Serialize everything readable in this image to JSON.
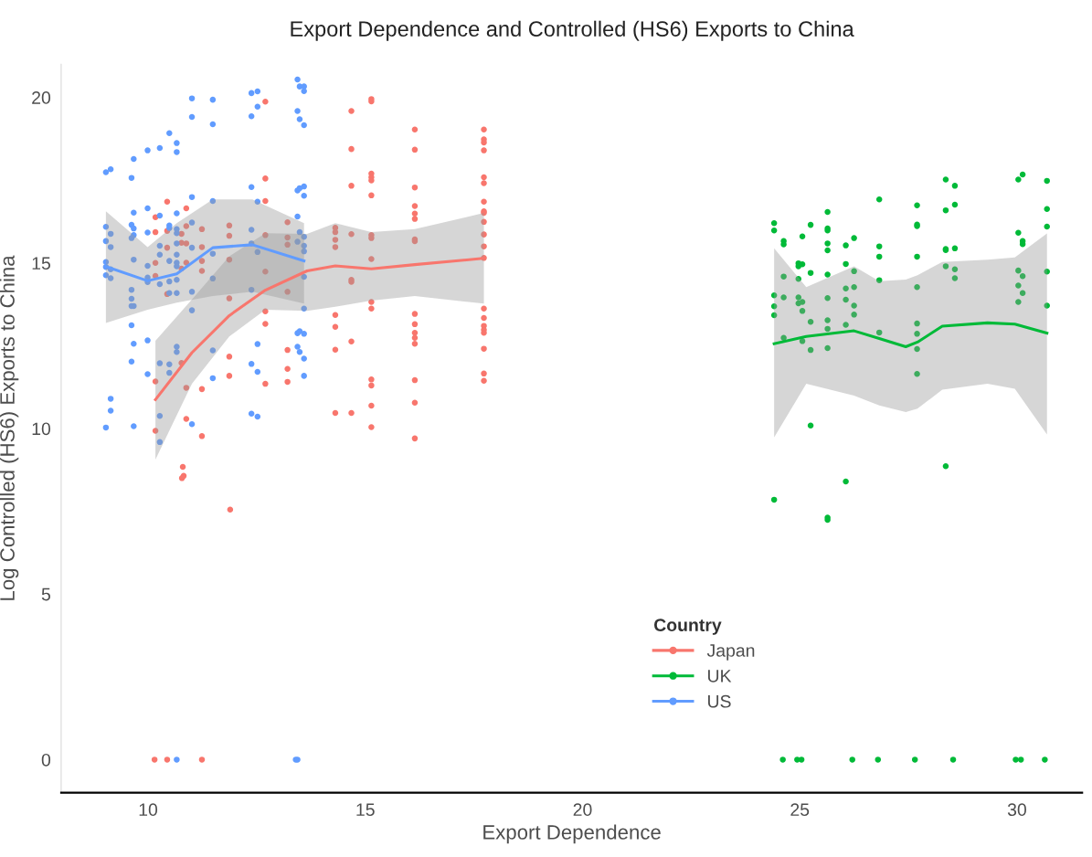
{
  "chart_data": {
    "type": "scatter",
    "title": "Export Dependence and Controlled (HS6) Exports to China",
    "xlabel": "Export Dependence",
    "ylabel": "Log Controlled (HS6) Exports to China",
    "legend_title": "Country",
    "legend": "bottom",
    "grid": false,
    "xlim": [
      8,
      31.5
    ],
    "xticks": [
      10,
      15,
      20,
      25,
      30
    ],
    "ylim": [
      -1,
      21
    ],
    "yticks": [
      0,
      5,
      10,
      15,
      20
    ],
    "series": [
      {
        "name": "Japan",
        "marker": "circle",
        "color": "#f8766d",
        "x": [
          12.7,
          12.7,
          12.7,
          10.44,
          10.88,
          10.17,
          10.88,
          10.17,
          10.44,
          11.24,
          11.87,
          11.87,
          12.7,
          13.21,
          13.21,
          13.21,
          10.77,
          10.77,
          10.88,
          10.44,
          11.24,
          11.24,
          11.87,
          10.17,
          10.88,
          10.77,
          11.24,
          12.7,
          10.17,
          10.44,
          13.21,
          11.87,
          12.7,
          12.7,
          13.21,
          11.87,
          13.21,
          11.87,
          12.7,
          13.21,
          10.17,
          10.77,
          10.88,
          11.24,
          10.88,
          10.17,
          11.24,
          10.8,
          10.82,
          10.78,
          11.89,
          10.15,
          10.44,
          11.24,
          14.31,
          14.31,
          14.31,
          14.31,
          14.31,
          14.31,
          14.31,
          14.31,
          14.68,
          14.68,
          14.68,
          14.68,
          14.68,
          14.68,
          14.68,
          14.68,
          15.14,
          15.14,
          15.14,
          15.14,
          15.14,
          15.14,
          15.14,
          15.14,
          15.14,
          15.14,
          15.14,
          15.14,
          15.14,
          15.14,
          15.14,
          16.14,
          16.14,
          16.14,
          16.14,
          16.14,
          16.14,
          16.14,
          16.14,
          16.14,
          16.14,
          16.14,
          16.14,
          16.14,
          16.14,
          16.14,
          16.14,
          17.73,
          17.73,
          17.73,
          17.73,
          17.73,
          17.73,
          17.73,
          17.73,
          17.73,
          17.73,
          17.73,
          17.73,
          17.73,
          17.73,
          17.73,
          17.73,
          17.73,
          17.73,
          17.73,
          17.73,
          17.73
        ],
        "values": [
          19.87,
          17.55,
          16.87,
          16.85,
          16.65,
          16.38,
          16.11,
          15.93,
          15.97,
          16.02,
          16.13,
          15.82,
          15.84,
          16.23,
          15.77,
          15.55,
          15.88,
          15.61,
          15.59,
          15.46,
          15.48,
          15.06,
          15.1,
          15.0,
          15.01,
          14.83,
          14.76,
          14.74,
          14.61,
          14.06,
          14.13,
          13.93,
          13.54,
          13.16,
          12.37,
          12.17,
          11.8,
          11.59,
          11.35,
          11.41,
          11.42,
          11.98,
          11.23,
          11.19,
          10.29,
          9.93,
          9.77,
          8.84,
          8.57,
          8.5,
          7.55,
          0,
          0,
          0,
          16.06,
          15.93,
          15.7,
          15.48,
          13.43,
          13.07,
          12.38,
          10.47,
          19.59,
          18.44,
          17.33,
          15.87,
          14.49,
          14.43,
          12.63,
          10.47,
          19.95,
          19.88,
          17.7,
          17.59,
          17.49,
          17.04,
          15.84,
          15.75,
          15.12,
          13.82,
          13.62,
          11.48,
          11.3,
          10.69,
          10.04,
          19.03,
          18.42,
          17.28,
          16.72,
          16.49,
          16.33,
          15.71,
          15.66,
          13.46,
          13.15,
          12.89,
          12.74,
          12.56,
          11.46,
          10.78,
          9.7,
          19.03,
          18.73,
          18.64,
          18.4,
          17.59,
          17.41,
          16.85,
          16.56,
          16.51,
          16.24,
          15.86,
          15.5,
          15.15,
          13.62,
          13.34,
          13.1,
          12.98,
          12.89,
          12.41,
          11.66,
          11.44
        ]
      },
      {
        "name": "UK",
        "marker": "circle",
        "color": "#00ba38",
        "x": [
          24.41,
          24.41,
          24.41,
          24.41,
          24.41,
          24.41,
          24.63,
          24.63,
          24.63,
          24.63,
          24.63,
          24.97,
          24.97,
          24.97,
          24.97,
          24.97,
          25.06,
          25.06,
          25.06,
          25.06,
          25.06,
          25.25,
          25.25,
          25.25,
          25.25,
          25.25,
          25.64,
          25.64,
          25.64,
          25.64,
          25.64,
          25.64,
          25.64,
          25.64,
          25.64,
          25.64,
          25.64,
          25.64,
          26.06,
          26.06,
          26.06,
          26.06,
          26.06,
          26.06,
          26.25,
          26.25,
          26.25,
          26.25,
          26.25,
          26.83,
          26.83,
          26.83,
          26.83,
          26.83,
          27.7,
          27.7,
          27.7,
          27.7,
          27.7,
          27.7,
          27.7,
          27.7,
          27.7,
          28.36,
          28.36,
          28.36,
          28.36,
          28.36,
          28.36,
          28.57,
          28.57,
          28.57,
          28.57,
          28.57,
          30.03,
          30.03,
          30.03,
          30.03,
          30.03,
          30.13,
          30.13,
          30.13,
          30.13,
          30.13,
          30.69,
          30.69,
          30.69,
          30.69,
          30.69,
          24.61,
          24.94,
          25.04,
          26.21,
          26.8,
          27.65,
          28.53,
          29.97,
          30.09,
          30.64
        ],
        "values": [
          16.2,
          15.98,
          14.02,
          13.69,
          13.42,
          7.85,
          15.66,
          15.56,
          14.59,
          13.96,
          12.74,
          14.99,
          14.9,
          14.52,
          13.96,
          13.78,
          14.96,
          15.8,
          13.82,
          13.55,
          12.64,
          16.15,
          14.7,
          13.22,
          12.37,
          10.09,
          16.54,
          16.04,
          15.98,
          15.59,
          15.38,
          14.65,
          13.94,
          13.27,
          13.01,
          12.43,
          7.31,
          7.24,
          15.53,
          14.97,
          14.23,
          13.89,
          13.13,
          8.4,
          15.75,
          14.75,
          14.27,
          13.71,
          13.44,
          16.92,
          15.5,
          15.19,
          14.48,
          12.9,
          16.74,
          16.16,
          16.11,
          15.19,
          14.27,
          13.17,
          12.86,
          12.4,
          11.65,
          17.52,
          16.59,
          15.42,
          15.39,
          14.9,
          8.86,
          17.33,
          16.76,
          15.44,
          14.81,
          14.54,
          17.52,
          15.91,
          14.77,
          14.32,
          13.82,
          17.67,
          15.66,
          15.57,
          14.6,
          14.09,
          17.48,
          16.63,
          16.1,
          14.74,
          13.71,
          0,
          0,
          0,
          0,
          0,
          0,
          0,
          0,
          0,
          0
        ]
      },
      {
        "name": "US",
        "marker": "circle",
        "color": "#619cff",
        "x": [
          9.03,
          9.14,
          11.01,
          11.49,
          11.01,
          11.49,
          12.38,
          12.52,
          12.52,
          12.38,
          13.44,
          13.49,
          13.59,
          13.59,
          13.44,
          13.49,
          13.59,
          10.49,
          10.66,
          10.66,
          10.27,
          9.99,
          9.67,
          9.62,
          12.38,
          12.52,
          13.44,
          13.49,
          13.59,
          13.59,
          11.01,
          11.49,
          10.27,
          9.67,
          9.99,
          9.03,
          9.14,
          9.03,
          9.14,
          9.62,
          9.67,
          9.67,
          9.62,
          9.99,
          10.49,
          10.49,
          10.66,
          10.66,
          10.66,
          11.01,
          13.44,
          13.49,
          13.44,
          13.59,
          13.59,
          13.59,
          12.38,
          12.38,
          12.52,
          10.27,
          10.27,
          10.66,
          10.66,
          10.49,
          10.66,
          10.66,
          11.01,
          11.49,
          9.03,
          9.03,
          9.14,
          9.03,
          9.14,
          9.67,
          9.99,
          9.99,
          9.99,
          10.27,
          10.49,
          10.66,
          10.49,
          10.66,
          11.49,
          11.01,
          12.38,
          13.59,
          9.62,
          9.62,
          9.67,
          9.62,
          11.01,
          13.59,
          9.62,
          9.67,
          9.99,
          9.62,
          9.99,
          10.66,
          10.66,
          10.49,
          10.27,
          10.49,
          11.49,
          12.52,
          13.44,
          13.49,
          13.59,
          13.44,
          13.49,
          13.59,
          13.59,
          11.49,
          12.38,
          12.52,
          9.14,
          9.14,
          9.03,
          9.67,
          10.27,
          11.01,
          12.38,
          12.52,
          10.27,
          10.66,
          13.4,
          13.44
        ],
        "values": [
          17.74,
          17.83,
          19.97,
          19.93,
          19.41,
          19.19,
          20.13,
          20.18,
          19.72,
          19.43,
          20.54,
          20.33,
          20.33,
          20.19,
          19.59,
          19.34,
          19.16,
          18.92,
          18.62,
          18.35,
          18.47,
          18.4,
          18.14,
          17.57,
          17.29,
          16.85,
          17.19,
          17.26,
          17.31,
          17.03,
          16.99,
          16.87,
          16.43,
          16.52,
          16.65,
          16.09,
          15.88,
          15.66,
          15.48,
          16.15,
          16.04,
          15.84,
          15.75,
          15.92,
          16.13,
          16.05,
          16.5,
          16.02,
          15.9,
          16.22,
          16.4,
          15.93,
          15.64,
          15.79,
          15.52,
          15.35,
          16.0,
          15.59,
          15.33,
          15.52,
          15.25,
          15.59,
          15.25,
          15.06,
          15.01,
          14.9,
          15.46,
          15.28,
          15.03,
          14.88,
          14.81,
          14.63,
          14.54,
          15.1,
          14.91,
          14.56,
          14.42,
          14.36,
          14.44,
          14.49,
          14.09,
          14.09,
          14.53,
          14.13,
          14.19,
          14.58,
          14.19,
          13.92,
          13.7,
          13.7,
          13.57,
          13.62,
          13.12,
          12.56,
          12.66,
          12.02,
          11.64,
          12.47,
          12.31,
          11.94,
          11.97,
          11.68,
          12.36,
          12.55,
          12.88,
          12.94,
          12.86,
          12.47,
          12.31,
          12.11,
          11.59,
          11.52,
          11.95,
          11.71,
          10.9,
          10.54,
          10.03,
          10.07,
          10.38,
          10.13,
          10.45,
          10.36,
          9.59,
          0,
          0,
          0
        ]
      },
      {
        "type": "line",
        "color": "#f8766d",
        "x": [
          10.17,
          11.01,
          11.87,
          12.7,
          13.66,
          14.31,
          15.14,
          16.14,
          17.73
        ],
        "values": [
          10.87,
          12.29,
          13.41,
          14.18,
          14.76,
          14.91,
          14.82,
          14.95,
          15.14
        ],
        "lower": [
          9.06,
          11.35,
          12.78,
          13.59,
          13.55,
          13.68,
          13.86,
          14.0,
          13.77
        ],
        "upper": [
          12.65,
          13.9,
          15.2,
          15.9,
          15.88,
          16.2,
          15.93,
          16.02,
          16.51
        ]
      },
      {
        "type": "line",
        "color": "#00ba38",
        "x": [
          24.41,
          25.15,
          26.25,
          26.83,
          27.44,
          27.71,
          28.28,
          29.32,
          29.95,
          30.69
        ],
        "values": [
          12.56,
          12.78,
          12.95,
          12.72,
          12.47,
          12.61,
          13.09,
          13.19,
          13.15,
          12.88
        ],
        "lower": [
          9.73,
          11.35,
          10.99,
          10.7,
          10.5,
          10.6,
          11.17,
          11.35,
          11.2,
          9.82
        ],
        "upper": [
          15.44,
          14.27,
          14.9,
          14.45,
          14.5,
          14.63,
          15.03,
          15.1,
          15.17,
          15.89
        ]
      },
      {
        "type": "line",
        "color": "#619cff",
        "x": [
          9.03,
          9.99,
          10.66,
          11.49,
          12.4,
          13.59
        ],
        "values": [
          14.89,
          14.46,
          14.67,
          15.46,
          15.55,
          15.06
        ],
        "lower": [
          13.19,
          13.59,
          13.8,
          14.0,
          14.13,
          13.77
        ],
        "upper": [
          16.56,
          15.48,
          16.2,
          16.92,
          16.92,
          16.2
        ]
      }
    ]
  }
}
